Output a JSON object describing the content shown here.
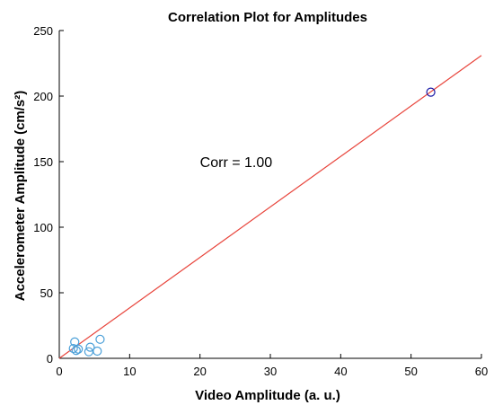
{
  "chart_data": {
    "type": "scatter",
    "title": "Correlation Plot for Amplitudes",
    "xlabel": "Video Amplitude (a. u.)",
    "ylabel": "Accelerometer Amplitude (cm/s²)",
    "xlim": [
      0,
      60
    ],
    "ylim": [
      0,
      250
    ],
    "x_ticks": [
      0,
      10,
      20,
      30,
      40,
      50,
      60
    ],
    "y_ticks": [
      0,
      50,
      100,
      150,
      200,
      250
    ],
    "grid": false,
    "legend": "none",
    "annotation": {
      "text": "Corr = 1.00",
      "x": 20,
      "y": 150
    },
    "fit_line": {
      "x": [
        0,
        60
      ],
      "y": [
        0,
        231
      ],
      "color": "#e8453c"
    },
    "points": [
      {
        "x": 52.8,
        "y": 203,
        "color": "#1a1aa6"
      },
      {
        "x": 2.2,
        "y": 12.5,
        "color": "#4a9fd8"
      },
      {
        "x": 2.0,
        "y": 7.5,
        "color": "#4a9fd8"
      },
      {
        "x": 2.4,
        "y": 6.0,
        "color": "#4a9fd8"
      },
      {
        "x": 2.7,
        "y": 7.0,
        "color": "#4a9fd8"
      },
      {
        "x": 4.2,
        "y": 5.0,
        "color": "#4a9fd8"
      },
      {
        "x": 4.4,
        "y": 8.5,
        "color": "#4a9fd8"
      },
      {
        "x": 5.4,
        "y": 5.5,
        "color": "#4a9fd8"
      },
      {
        "x": 5.8,
        "y": 14.5,
        "color": "#4a9fd8"
      }
    ]
  }
}
